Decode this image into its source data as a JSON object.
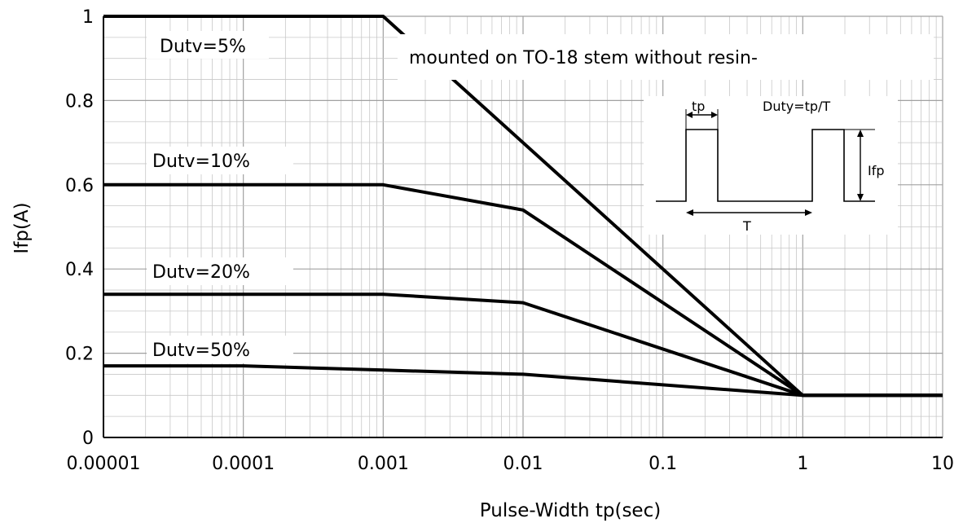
{
  "chart_data": {
    "type": "line",
    "x_scale": "log",
    "xlim": [
      1e-05,
      10
    ],
    "ylim": [
      0,
      1
    ],
    "xlabel": "Pulse-Width tp(sec)",
    "ylabel": "Ifp(A)",
    "x_ticks": [
      "0.00001",
      "0.0001",
      "0.001",
      "0.01",
      "0.1",
      "1",
      "10"
    ],
    "y_ticks": [
      "0",
      "0.2",
      "0.4",
      "0.6",
      "0.8",
      "1"
    ],
    "grid": true,
    "note": "mounted on TO-18 stem without resin-",
    "series": [
      {
        "name": "Dutv=5%",
        "x": [
          1e-05,
          0.001,
          1,
          10
        ],
        "y": [
          1.0,
          1.0,
          0.1,
          0.1
        ]
      },
      {
        "name": "Dutv=10%",
        "x": [
          1e-05,
          0.001,
          0.01,
          1,
          10
        ],
        "y": [
          0.6,
          0.6,
          0.54,
          0.1,
          0.1
        ]
      },
      {
        "name": "Dutv=20%",
        "x": [
          1e-05,
          0.001,
          0.01,
          1,
          10
        ],
        "y": [
          0.34,
          0.34,
          0.32,
          0.1,
          0.1
        ]
      },
      {
        "name": "Dutv=50%",
        "x": [
          1e-05,
          0.0001,
          0.001,
          0.01,
          1,
          10
        ],
        "y": [
          0.17,
          0.17,
          0.16,
          0.15,
          0.1,
          0.1
        ]
      }
    ],
    "inset": {
      "tp_label": "tp",
      "duty_label": "Duty=tp/T",
      "ifp_label": "Ifp",
      "period_label": "T"
    },
    "colors": {
      "line": "#000000",
      "grid": "#c8c8c8",
      "grid_major": "#a0a0a0"
    }
  }
}
